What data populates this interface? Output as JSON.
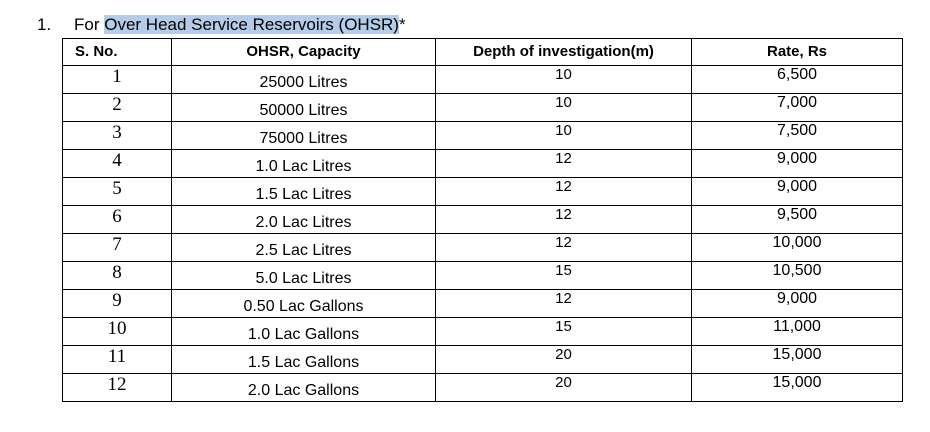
{
  "heading": {
    "number": "1.",
    "prefix": "For",
    "highlighted": "Over Head Service Reservoirs (OHSR)",
    "suffix": "*"
  },
  "table": {
    "headers": {
      "sno": "S. No.",
      "capacity": "OHSR, Capacity",
      "depth": "Depth of investigation(m)",
      "rate": "Rate, Rs"
    },
    "rows": [
      {
        "sno": "1",
        "capacity": "25000 Litres",
        "depth": "10",
        "rate": "6,500"
      },
      {
        "sno": "2",
        "capacity": "50000 Litres",
        "depth": "10",
        "rate": "7,000"
      },
      {
        "sno": "3",
        "capacity": "75000 Litres",
        "depth": "10",
        "rate": "7,500"
      },
      {
        "sno": "4",
        "capacity": "1.0 Lac Litres",
        "depth": "12",
        "rate": "9,000"
      },
      {
        "sno": "5",
        "capacity": "1.5 Lac Litres",
        "depth": "12",
        "rate": "9,000"
      },
      {
        "sno": "6",
        "capacity": "2.0 Lac Litres",
        "depth": "12",
        "rate": "9,500"
      },
      {
        "sno": "7",
        "capacity": "2.5 Lac Litres",
        "depth": "12",
        "rate": "10,000"
      },
      {
        "sno": "8",
        "capacity": "5.0 Lac Litres",
        "depth": "15",
        "rate": "10,500"
      },
      {
        "sno": "9",
        "capacity": "0.50 Lac Gallons",
        "depth": "12",
        "rate": "9,000"
      },
      {
        "sno": "10",
        "capacity": "1.0 Lac Gallons",
        "depth": "15",
        "rate": "11,000"
      },
      {
        "sno": "11",
        "capacity": "1.5 Lac Gallons",
        "depth": "20",
        "rate": "15,000"
      },
      {
        "sno": "12",
        "capacity": "2.0 Lac Gallons",
        "depth": "20",
        "rate": "15,000"
      }
    ]
  }
}
